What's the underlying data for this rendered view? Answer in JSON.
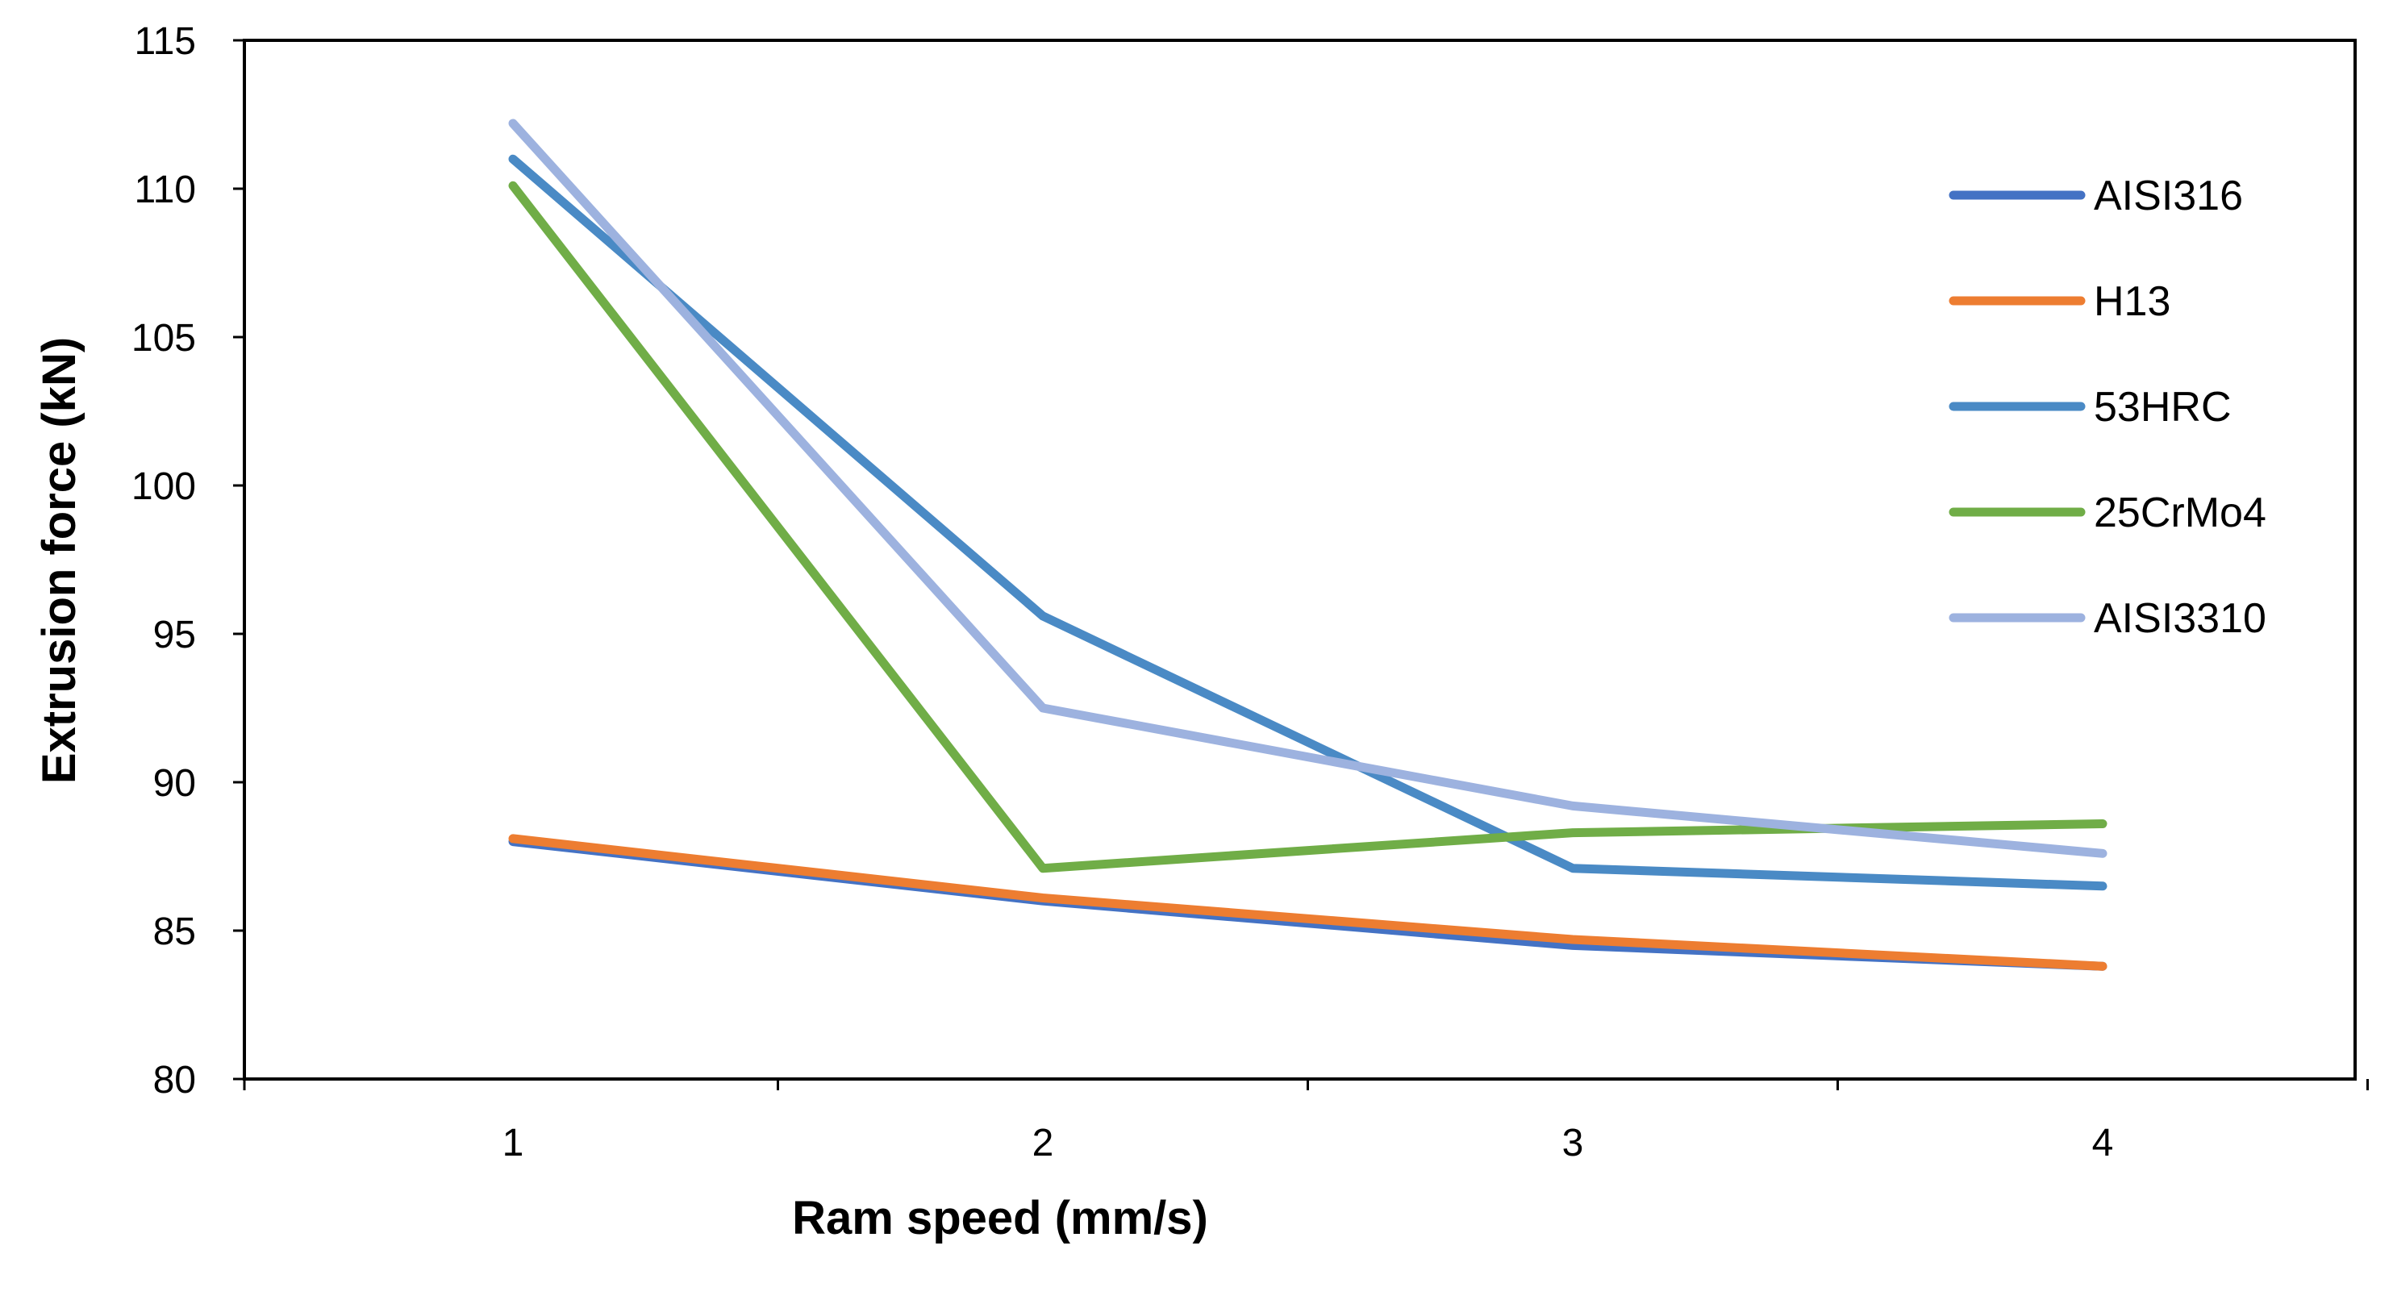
{
  "chart_data": {
    "type": "line",
    "title": "",
    "xlabel": "Ram speed (mm/s)",
    "ylabel": "Extrusion force (kN)",
    "categories": [
      "1",
      "2",
      "3",
      "4"
    ],
    "x": [
      1,
      2,
      3,
      4
    ],
    "ylim": [
      80,
      115
    ],
    "yticks": [
      80,
      85,
      90,
      95,
      100,
      105,
      110,
      115
    ],
    "ytick_labels": [
      "80",
      "85",
      "90",
      "95",
      "100",
      "105",
      "110",
      "115"
    ],
    "grid": false,
    "legend_position": "right",
    "series": [
      {
        "name": "AISI316",
        "color": "#4472c4",
        "values": [
          88.0,
          86.0,
          84.5,
          83.8
        ]
      },
      {
        "name": "H13",
        "color": "#ed7d31",
        "values": [
          88.1,
          86.1,
          84.7,
          83.8
        ]
      },
      {
        "name": "53HRC",
        "color": "#4a8ac5",
        "values": [
          111.0,
          95.6,
          87.1,
          86.5
        ]
      },
      {
        "name": "25CrMo4",
        "color": "#70ad47",
        "values": [
          110.1,
          87.1,
          88.3,
          88.6
        ]
      },
      {
        "name": "AISI3310",
        "color": "#9db2df",
        "values": [
          112.2,
          92.5,
          89.2,
          87.6
        ]
      }
    ]
  }
}
